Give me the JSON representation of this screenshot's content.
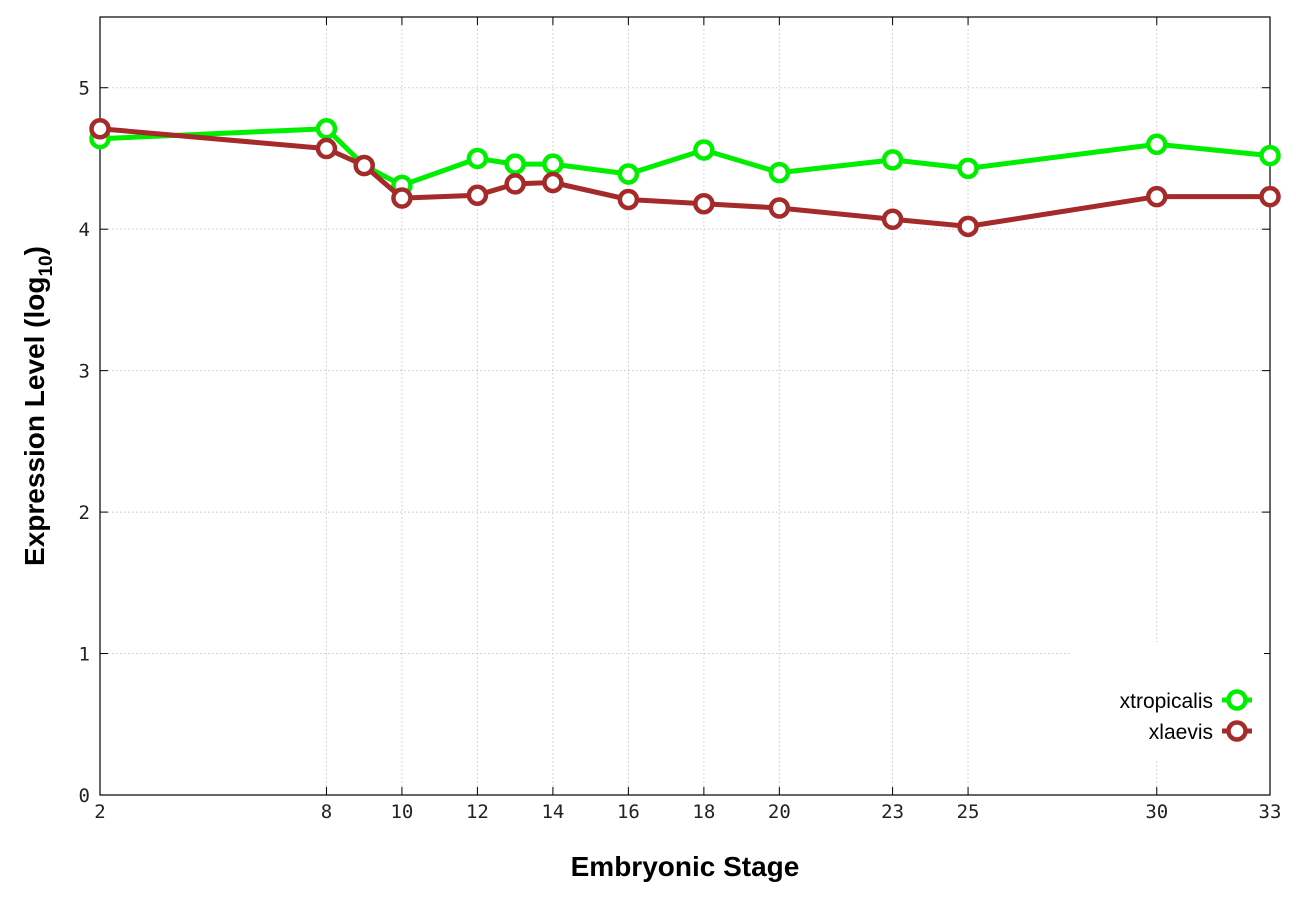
{
  "chart_data": {
    "type": "line",
    "title": "",
    "xlabel": "Embryonic Stage",
    "ylabel_main": "Expression Level (log",
    "ylabel_sub": "10",
    "ylabel_close": ")",
    "x_ticks": [
      2,
      8,
      10,
      12,
      14,
      16,
      18,
      20,
      23,
      25,
      30,
      33
    ],
    "x_tick_labels": [
      "2",
      "8",
      "10",
      "12",
      "14",
      "16",
      "18",
      "20",
      "23",
      "25",
      "30",
      "33"
    ],
    "y_ticks": [
      0,
      1,
      2,
      3,
      4,
      5
    ],
    "y_tick_labels": [
      "0",
      "1",
      "2",
      "3",
      "4",
      "5"
    ],
    "xlim": [
      2,
      33
    ],
    "ylim": [
      0,
      5.5
    ],
    "grid": true,
    "legend_position": "bottom-right",
    "series": [
      {
        "name": "xtropicalis",
        "color": "#00ee00",
        "marker": "circle-open",
        "x": [
          2,
          8,
          9,
          10,
          12,
          13,
          14,
          16,
          18,
          20,
          23,
          25,
          30,
          33
        ],
        "y": [
          4.64,
          4.71,
          4.45,
          4.31,
          4.5,
          4.46,
          4.46,
          4.39,
          4.56,
          4.4,
          4.49,
          4.43,
          4.6,
          4.52
        ]
      },
      {
        "name": "xlaevis",
        "color": "#a52a2a",
        "marker": "circle-open",
        "x": [
          2,
          8,
          9,
          10,
          12,
          13,
          14,
          16,
          18,
          20,
          23,
          25,
          30,
          33
        ],
        "y": [
          4.71,
          4.57,
          4.45,
          4.22,
          4.24,
          4.32,
          4.33,
          4.21,
          4.18,
          4.15,
          4.07,
          4.02,
          4.23,
          4.23
        ]
      }
    ]
  }
}
